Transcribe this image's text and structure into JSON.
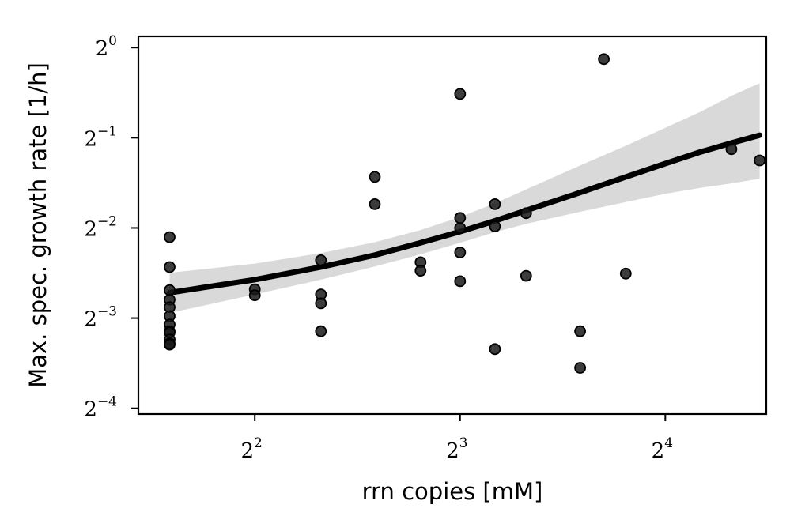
{
  "chart_data": {
    "type": "scatter",
    "xlabel": "rrn copies [mM]",
    "ylabel": "Max. spec. growth rate [1/h]",
    "x_scale": "log2",
    "y_scale": "log2",
    "xlim": [
      2.7,
      22.5
    ],
    "ylim": [
      0.0598,
      1.09
    ],
    "x_ticks": [
      {
        "value": 4,
        "base": "2",
        "exp": "2"
      },
      {
        "value": 8,
        "base": "2",
        "exp": "3"
      },
      {
        "value": 16,
        "base": "2",
        "exp": "4"
      }
    ],
    "y_ticks": [
      {
        "value": 1,
        "base": "2",
        "exp": "0"
      },
      {
        "value": 0.5,
        "base": "2",
        "exp": "−1"
      },
      {
        "value": 0.25,
        "base": "2",
        "exp": "−2"
      },
      {
        "value": 0.125,
        "base": "2",
        "exp": "−3"
      },
      {
        "value": 0.0625,
        "base": "2",
        "exp": "−4"
      }
    ],
    "grid": false,
    "legend": "none",
    "colors": {
      "points": "#1a1a1a",
      "fit_line": "#000000",
      "band": "#d9d9d9"
    },
    "points": [
      {
        "x": 3.0,
        "y": 0.233
      },
      {
        "x": 3.0,
        "y": 0.185
      },
      {
        "x": 3.0,
        "y": 0.155
      },
      {
        "x": 3.0,
        "y": 0.144
      },
      {
        "x": 3.0,
        "y": 0.136
      },
      {
        "x": 3.0,
        "y": 0.127
      },
      {
        "x": 3.0,
        "y": 0.119
      },
      {
        "x": 3.0,
        "y": 0.113
      },
      {
        "x": 3.0,
        "y": 0.112
      },
      {
        "x": 3.0,
        "y": 0.106
      },
      {
        "x": 3.0,
        "y": 0.103
      },
      {
        "x": 3.0,
        "y": 0.102
      },
      {
        "x": 4.0,
        "y": 0.156
      },
      {
        "x": 4.0,
        "y": 0.149
      },
      {
        "x": 5.0,
        "y": 0.195
      },
      {
        "x": 5.0,
        "y": 0.15
      },
      {
        "x": 5.0,
        "y": 0.14
      },
      {
        "x": 5.0,
        "y": 0.113
      },
      {
        "x": 6.0,
        "y": 0.37
      },
      {
        "x": 6.0,
        "y": 0.3
      },
      {
        "x": 7.0,
        "y": 0.192
      },
      {
        "x": 7.0,
        "y": 0.18
      },
      {
        "x": 8.0,
        "y": 0.7
      },
      {
        "x": 8.0,
        "y": 0.27
      },
      {
        "x": 8.0,
        "y": 0.25
      },
      {
        "x": 8.0,
        "y": 0.207
      },
      {
        "x": 8.0,
        "y": 0.166
      },
      {
        "x": 9.0,
        "y": 0.3
      },
      {
        "x": 9.0,
        "y": 0.253
      },
      {
        "x": 9.0,
        "y": 0.0985
      },
      {
        "x": 10.0,
        "y": 0.28
      },
      {
        "x": 10.0,
        "y": 0.173
      },
      {
        "x": 12.0,
        "y": 0.113
      },
      {
        "x": 12.0,
        "y": 0.0853
      },
      {
        "x": 13.0,
        "y": 0.915
      },
      {
        "x": 14.0,
        "y": 0.176
      },
      {
        "x": 20.0,
        "y": 0.458
      },
      {
        "x": 22.0,
        "y": 0.42
      }
    ],
    "fit": {
      "x": [
        3.0,
        4.0,
        5.0,
        6.0,
        7.0,
        8.0,
        9.0,
        10.0,
        12.0,
        14.0,
        16.0,
        18.0,
        20.0,
        22.0
      ],
      "y": [
        0.152,
        0.168,
        0.185,
        0.203,
        0.223,
        0.243,
        0.264,
        0.286,
        0.328,
        0.37,
        0.41,
        0.448,
        0.48,
        0.51
      ],
      "lower": [
        0.13,
        0.15,
        0.168,
        0.186,
        0.204,
        0.223,
        0.242,
        0.258,
        0.283,
        0.305,
        0.325,
        0.34,
        0.352,
        0.365
      ],
      "upper": [
        0.177,
        0.19,
        0.206,
        0.224,
        0.246,
        0.272,
        0.302,
        0.336,
        0.404,
        0.47,
        0.54,
        0.61,
        0.69,
        0.76
      ]
    }
  }
}
